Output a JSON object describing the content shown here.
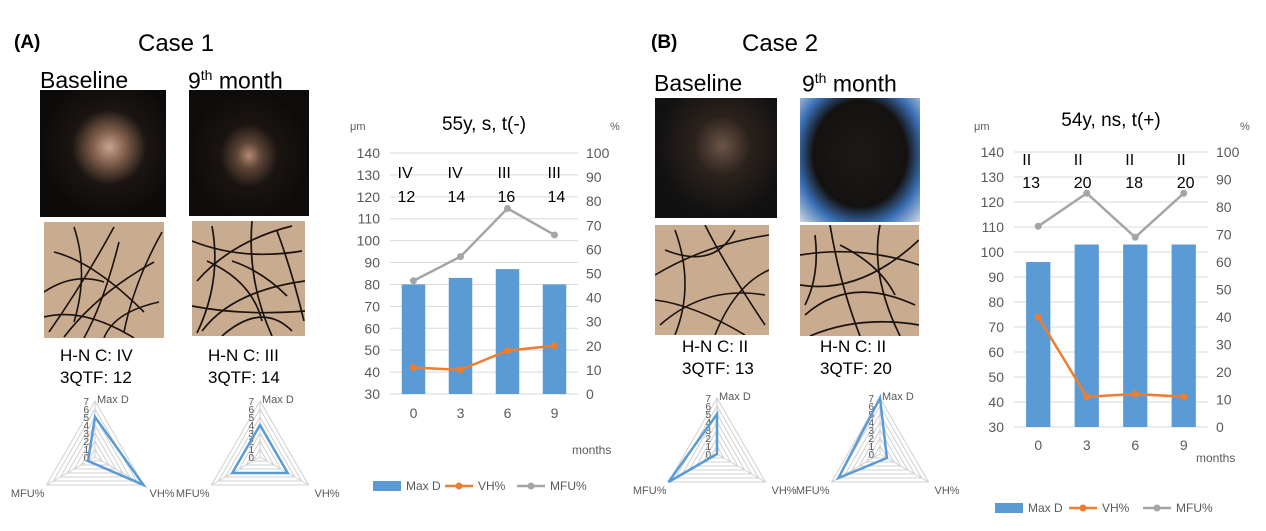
{
  "panels": [
    {
      "letter": "(A)",
      "case_title": "Case 1",
      "baseline_label": "Baseline",
      "month_label_main": "9",
      "month_label_sup": "th",
      "month_label_rest": " month",
      "baseline_hnc": "H-N C: IV",
      "baseline_qtf": "3QTF: 12",
      "month_hnc": "H-N C: III",
      "month_qtf": "3QTF: 14",
      "radar_baseline": {
        "axes": [
          "Max D",
          "VH%",
          "MFU%"
        ],
        "ticks": [
          "7",
          "6",
          "5",
          "4",
          "3",
          "2",
          "1",
          "0"
        ],
        "values": [
          5,
          7,
          1
        ]
      },
      "radar_month": {
        "axes": [
          "Max D",
          "VH%",
          "MFU%"
        ],
        "ticks": [
          "7",
          "6",
          "5",
          "4",
          "3",
          "2",
          "1",
          "0"
        ],
        "values": [
          4,
          4,
          4
        ]
      }
    },
    {
      "letter": "(B)",
      "case_title": "Case 2",
      "baseline_label": "Baseline",
      "month_label_main": "9",
      "month_label_sup": "th",
      "month_label_rest": " month",
      "baseline_hnc": "H-N C: II",
      "baseline_qtf": "3QTF: 13",
      "month_hnc": "H-N C: II",
      "month_qtf": "3QTF: 20",
      "radar_baseline": {
        "axes": [
          "Max D",
          "VH%",
          "MFU%"
        ],
        "ticks": [
          "7",
          "6",
          "5",
          "4",
          "3",
          "2",
          "1",
          "0"
        ],
        "values": [
          5,
          0,
          7
        ]
      },
      "radar_month": {
        "axes": [
          "Max D",
          "VH%",
          "MFU%"
        ],
        "ticks": [
          "7",
          "6",
          "5",
          "4",
          "3",
          "2",
          "1",
          "0"
        ],
        "values": [
          7,
          1,
          6
        ]
      }
    }
  ],
  "chart_data": [
    {
      "type": "bar",
      "title": "55y, s, t(-)",
      "xlabel": "months",
      "ylabel_left": "μm",
      "ylabel_right": "%",
      "categories": [
        "0",
        "3",
        "6",
        "9"
      ],
      "ylim": [
        30,
        140
      ],
      "y_ticks": [
        30,
        40,
        50,
        60,
        70,
        80,
        90,
        100,
        110,
        120,
        130,
        140
      ],
      "y2lim": [
        0,
        100
      ],
      "y2_ticks": [
        0,
        10,
        20,
        30,
        40,
        50,
        60,
        70,
        80,
        90,
        100
      ],
      "series": [
        {
          "name": "Max D",
          "kind": "bar",
          "axis": "left",
          "color": "#5b9bd5",
          "values": [
            80,
            83,
            87,
            80
          ]
        },
        {
          "name": "VH%",
          "kind": "line",
          "axis": "right",
          "color": "#ed7d31",
          "values": [
            11,
            10,
            18,
            20
          ]
        },
        {
          "name": "MFU%",
          "kind": "line",
          "axis": "right",
          "color": "#a5a5a5",
          "values": [
            47,
            57,
            77,
            66
          ]
        }
      ],
      "annotations_top": [
        "IV",
        "IV",
        "III",
        "III"
      ],
      "annotations_second": [
        "12",
        "14",
        "16",
        "14"
      ]
    },
    {
      "type": "bar",
      "title": "54y, ns, t(+)",
      "xlabel": "months",
      "ylabel_left": "μm",
      "ylabel_right": "%",
      "categories": [
        "0",
        "3",
        "6",
        "9"
      ],
      "ylim": [
        30,
        140
      ],
      "y_ticks": [
        30,
        40,
        50,
        60,
        70,
        80,
        90,
        100,
        110,
        120,
        130,
        140
      ],
      "y2lim": [
        0,
        100
      ],
      "y2_ticks": [
        0,
        10,
        20,
        30,
        40,
        50,
        60,
        70,
        80,
        90,
        100
      ],
      "series": [
        {
          "name": "Max D",
          "kind": "bar",
          "axis": "left",
          "color": "#5b9bd5",
          "values": [
            96,
            103,
            103,
            103
          ]
        },
        {
          "name": "VH%",
          "kind": "line",
          "axis": "right",
          "color": "#ed7d31",
          "values": [
            40,
            11,
            12,
            11
          ]
        },
        {
          "name": "MFU%",
          "kind": "line",
          "axis": "right",
          "color": "#a5a5a5",
          "values": [
            73,
            85,
            69,
            85
          ]
        }
      ],
      "annotations_top": [
        "II",
        "II",
        "II",
        "II"
      ],
      "annotations_second": [
        "13",
        "20",
        "18",
        "20"
      ]
    }
  ]
}
